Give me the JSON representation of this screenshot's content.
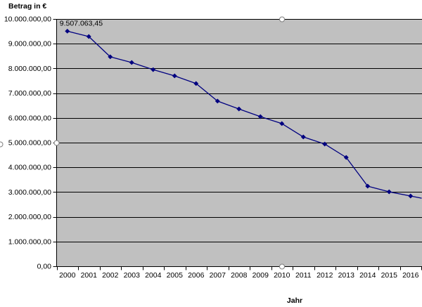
{
  "chart_data": {
    "type": "line",
    "ylabel": "Betrag in €",
    "xlabel": "Jahr",
    "categories": [
      "2000",
      "2001",
      "2002",
      "2003",
      "2004",
      "2005",
      "2006",
      "2007",
      "2008",
      "2009",
      "2010",
      "2011",
      "2012",
      "2013",
      "2014",
      "2015",
      "2016"
    ],
    "series": [
      {
        "values": [
          9507063.45,
          9290000,
          8470000,
          8240000,
          7950000,
          7700000,
          7390000,
          6680000,
          6360000,
          6050000,
          5770000,
          5230000,
          4940000,
          4400000,
          3240000,
          3010000,
          2840000
        ],
        "color": "#000080",
        "marker": "diamond"
      }
    ],
    "ylim": [
      0,
      10000000
    ],
    "yticks": [
      0,
      1000000,
      2000000,
      3000000,
      4000000,
      5000000,
      6000000,
      7000000,
      8000000,
      9000000,
      10000000
    ],
    "ytick_labels": [
      "0,00",
      "1.000.000,00",
      "2.000.000,00",
      "3.000.000,00",
      "4.000.000,00",
      "5.000.000,00",
      "6.000.000,00",
      "7.000.000,00",
      "8.000.000,00",
      "9.000.000,00",
      "10.000.000,00"
    ],
    "data_labels": [
      {
        "category": "2000",
        "text": "9.507.063,45"
      }
    ],
    "grid": "horizontal",
    "legend": "none",
    "plot_background": "#C0C0C0",
    "gridline_color": "#000000",
    "axis_color": "#000000"
  }
}
